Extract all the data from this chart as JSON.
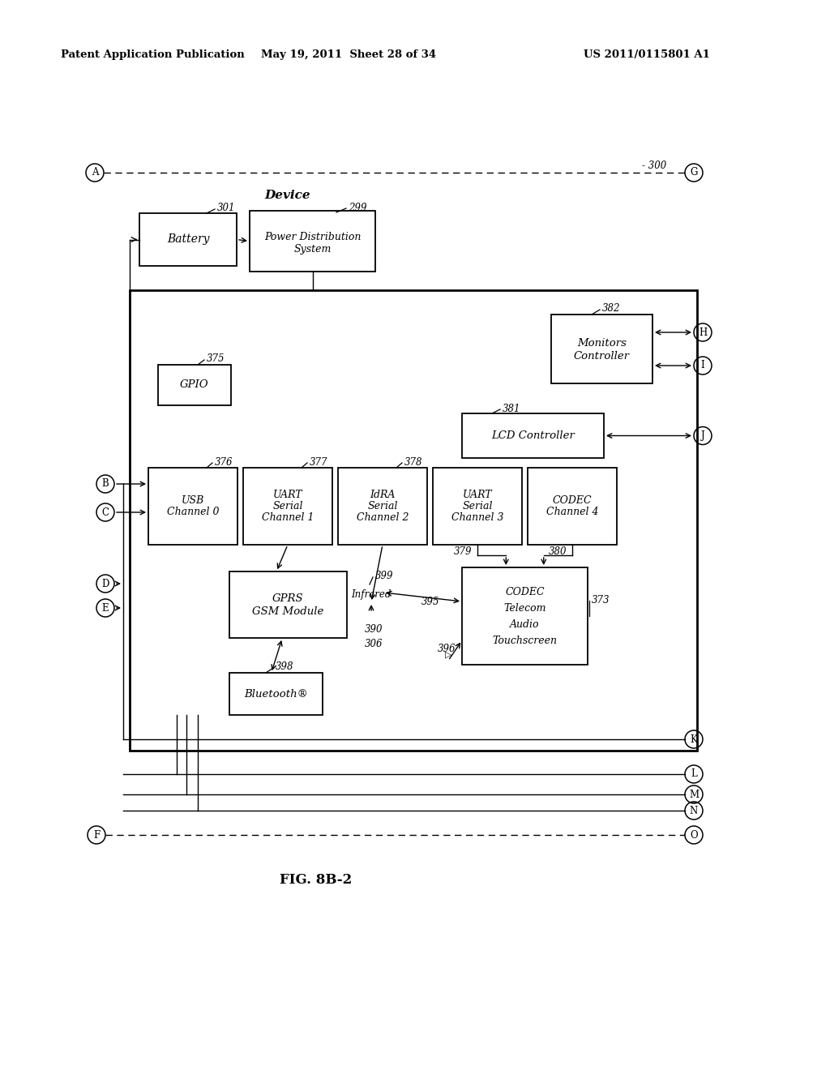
{
  "bg_color": "#ffffff",
  "header_left": "Patent Application Publication",
  "header_mid": "May 19, 2011  Sheet 28 of 34",
  "header_right": "US 2011/0115801 A1",
  "figure_label": "FIG. 8B-2"
}
